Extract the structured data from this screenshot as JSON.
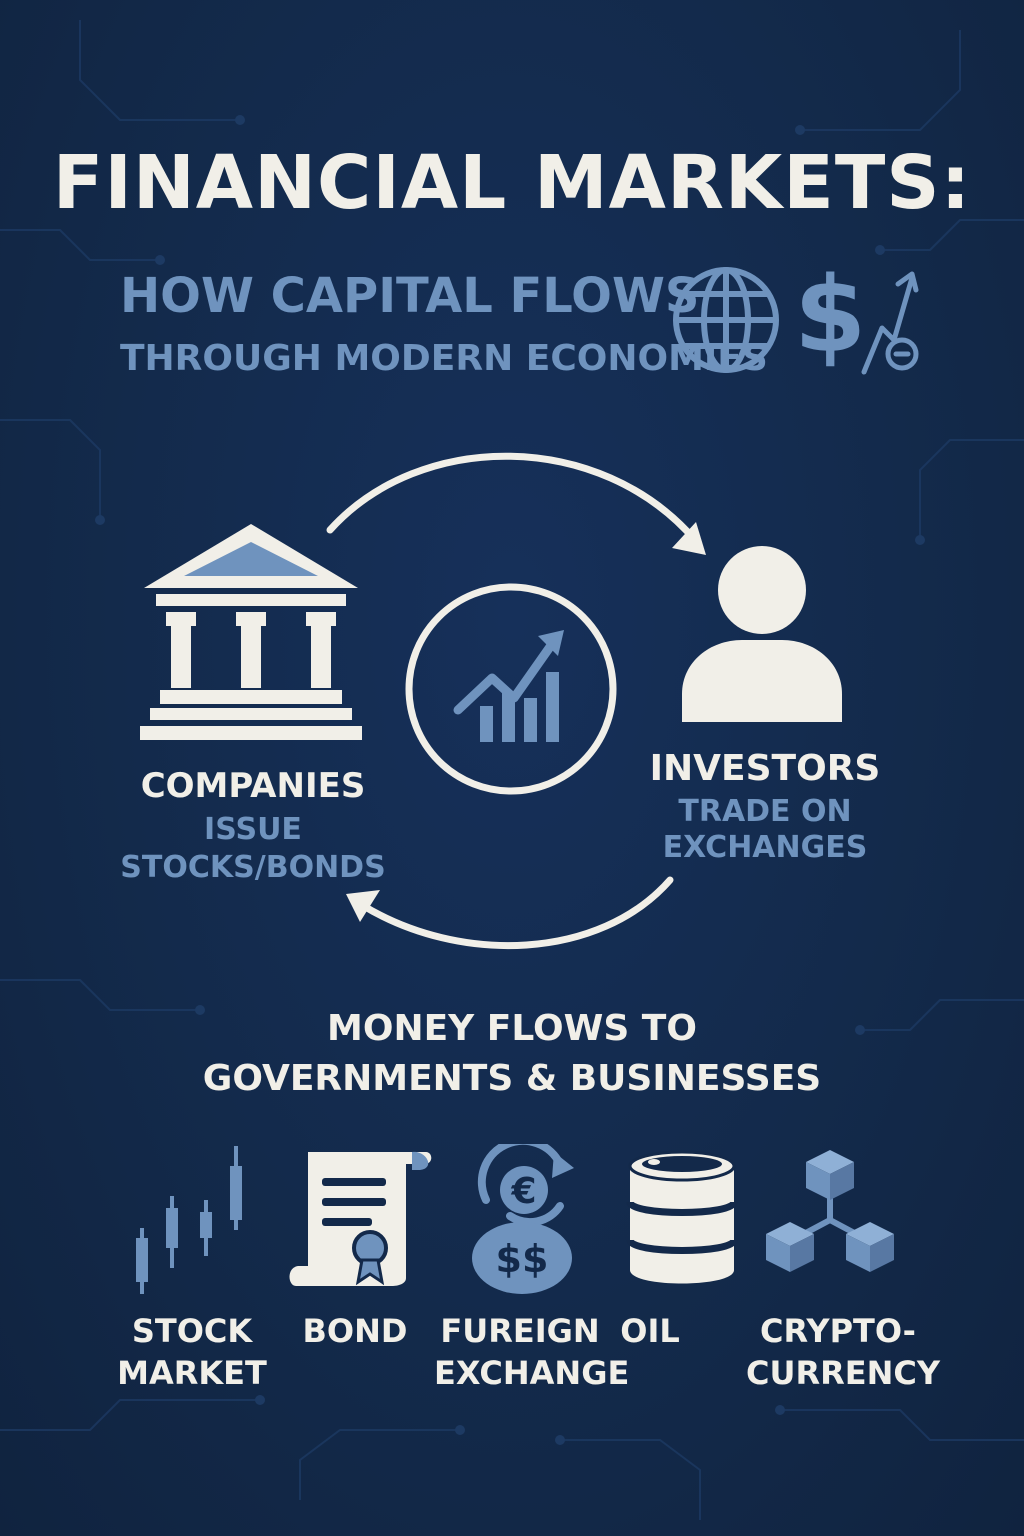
{
  "title": "FINANCIAL MARKETS:",
  "subtitle": {
    "line1": "HOW CAPITAL FLOWS",
    "line2": "THROUGH MODERN ECONOMIES"
  },
  "header_icons": [
    "globe-icon",
    "dollar-sign-icon",
    "growth-coin-icon"
  ],
  "cycle": {
    "center_icon": "growth-chart-icon",
    "companies": {
      "icon": "bank-building-icon",
      "title": "COMPANIES",
      "desc_line1": "ISSUE",
      "desc_line2": "STOCKS/BONDS"
    },
    "investors": {
      "icon": "person-icon",
      "title": "INVESTORS",
      "desc_line1": "TRADE ON",
      "desc_line2": "EXCHANGES"
    }
  },
  "money_flow": {
    "line1": "MONEY FLOWS TO",
    "line2": "GOVERNMENTS & BUSINESSES"
  },
  "markets": [
    {
      "icon": "candlestick-icon",
      "line1": "STOCK",
      "line2": "MARKET"
    },
    {
      "icon": "bond-certificate-icon",
      "line1": "BOND",
      "line2": ""
    },
    {
      "icon": "currency-exchange-icon",
      "line1": "FUREIGN",
      "line2": "EXCHANGE"
    },
    {
      "icon": "oil-barrel-icon",
      "line1": "OIL",
      "line2": ""
    },
    {
      "icon": "crypto-blocks-icon",
      "line1": "CRYPTO-",
      "line2": "CURRENCY"
    }
  ],
  "colors": {
    "background": "#13294a",
    "white": "#f1efe8",
    "accent_blue": "#6f93be"
  }
}
